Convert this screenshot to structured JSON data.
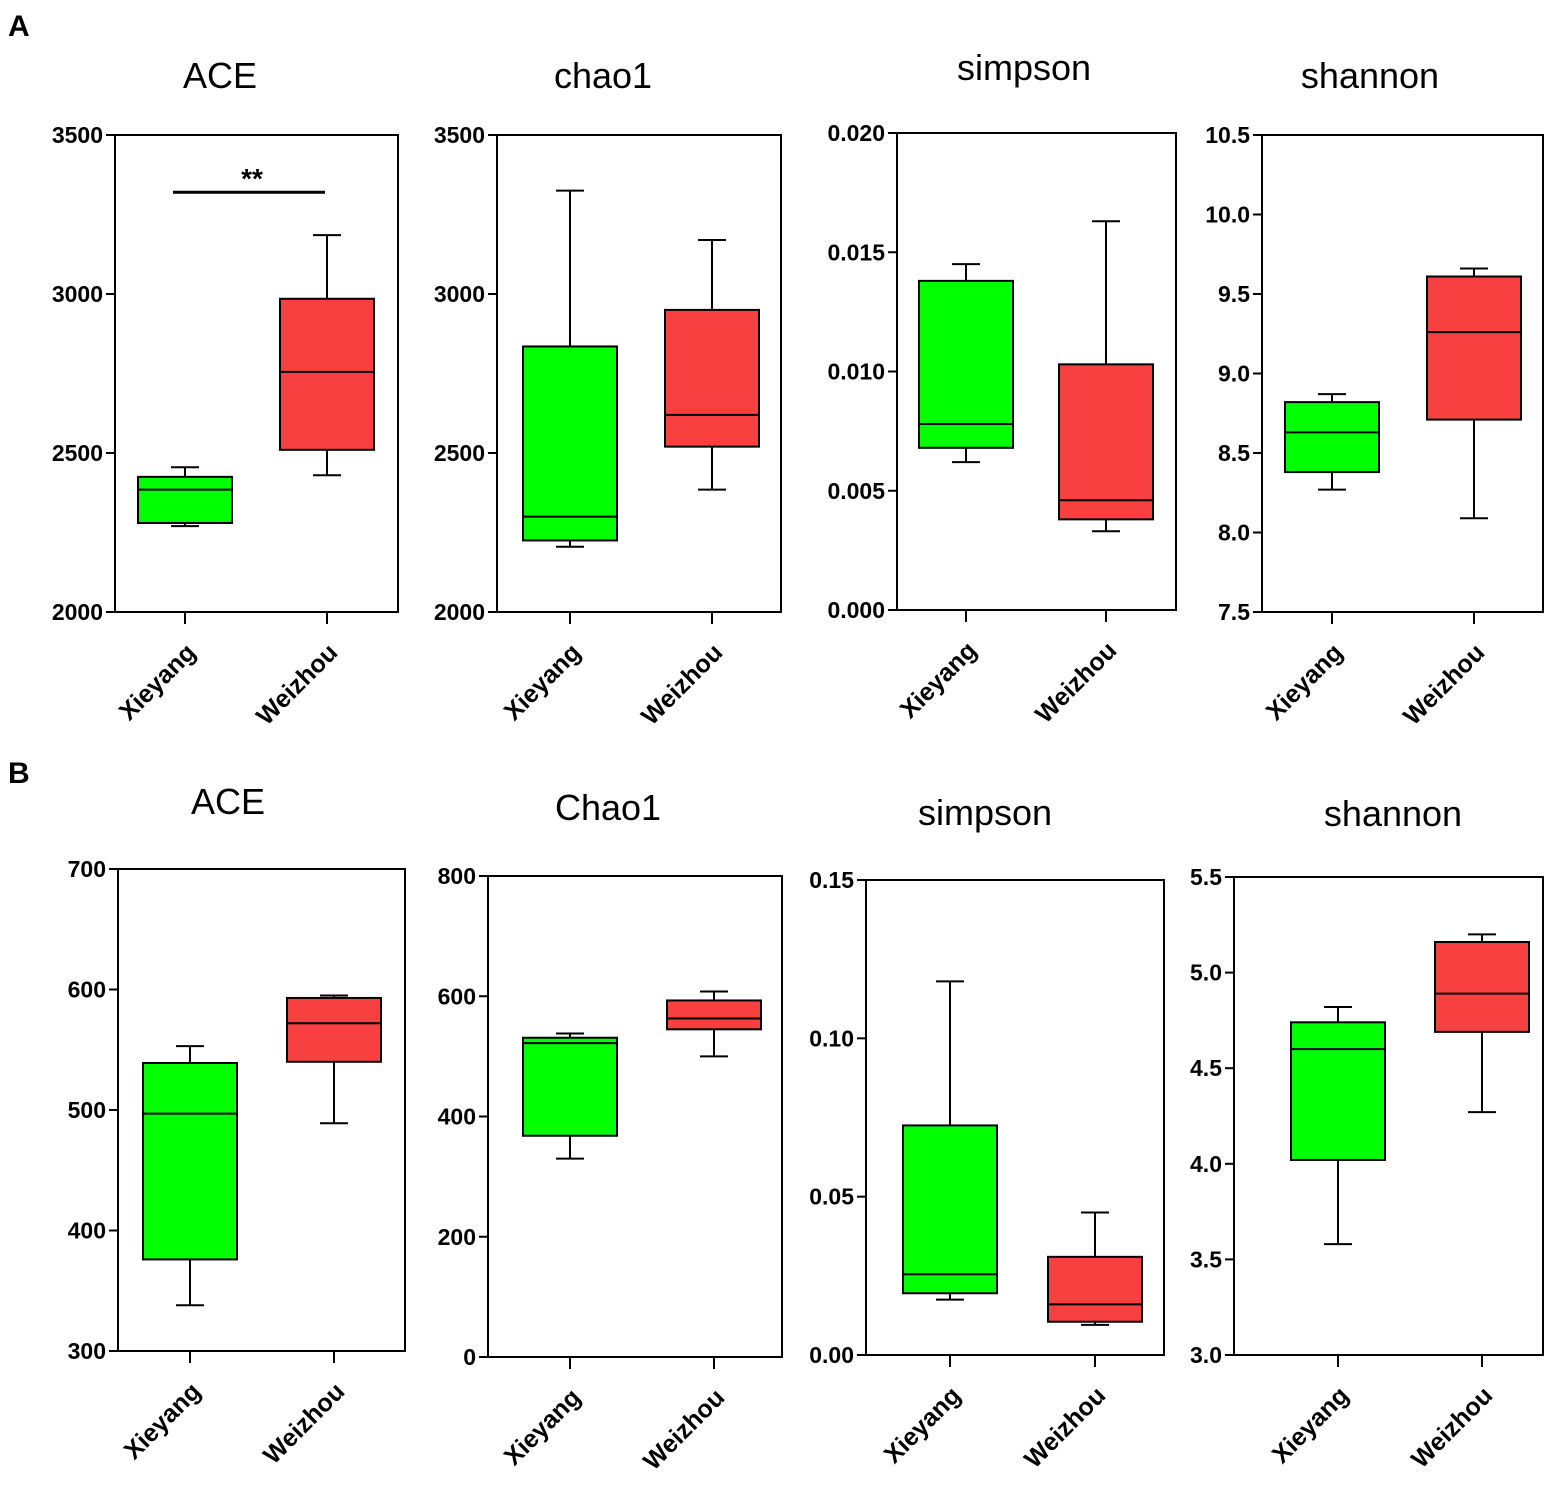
{
  "panels": [
    {
      "label": "A"
    },
    {
      "label": "B"
    }
  ],
  "colors": {
    "Xieyang": "#00ff00",
    "Weizhou": "#f84040",
    "stroke": "#000000"
  },
  "chart_data": [
    {
      "type": "box",
      "panel": "A",
      "title": "ACE",
      "categories": [
        "Xieyang",
        "Weizhou"
      ],
      "ylim": [
        2000,
        3500
      ],
      "yticks": [
        2000,
        2500,
        3000,
        3500
      ],
      "ytick_labels": [
        "2000",
        "2500",
        "3000",
        "3500"
      ],
      "boxes": [
        {
          "group": "Xieyang",
          "min": 2270,
          "q1": 2280,
          "median": 2385,
          "q3": 2425,
          "max": 2455
        },
        {
          "group": "Weizhou",
          "min": 2430,
          "q1": 2510,
          "median": 2755,
          "q3": 2985,
          "max": 3185
        }
      ],
      "significance": {
        "label": "**",
        "value": 3320
      }
    },
    {
      "type": "box",
      "panel": "A",
      "title": "chao1",
      "categories": [
        "Xieyang",
        "Weizhou"
      ],
      "ylim": [
        2000,
        3500
      ],
      "yticks": [
        2000,
        2500,
        3000,
        3500
      ],
      "ytick_labels": [
        "2000",
        "2500",
        "3000",
        "3500"
      ],
      "boxes": [
        {
          "group": "Xieyang",
          "min": 2205,
          "q1": 2225,
          "median": 2300,
          "q3": 2835,
          "max": 3325
        },
        {
          "group": "Weizhou",
          "min": 2385,
          "q1": 2520,
          "median": 2620,
          "q3": 2950,
          "max": 3170
        }
      ]
    },
    {
      "type": "box",
      "panel": "A",
      "title": "simpson",
      "categories": [
        "Xieyang",
        "Weizhou"
      ],
      "ylim": [
        0,
        0.02
      ],
      "yticks": [
        0,
        0.005,
        0.01,
        0.015,
        0.02
      ],
      "ytick_labels": [
        "0.000",
        "0.005",
        "0.010",
        "0.015",
        "0.020"
      ],
      "boxes": [
        {
          "group": "Xieyang",
          "min": 0.0062,
          "q1": 0.0068,
          "median": 0.0078,
          "q3": 0.0138,
          "max": 0.0145
        },
        {
          "group": "Weizhou",
          "min": 0.0033,
          "q1": 0.0038,
          "median": 0.0046,
          "q3": 0.0103,
          "max": 0.0163
        }
      ]
    },
    {
      "type": "box",
      "panel": "A",
      "title": "shannon",
      "categories": [
        "Xieyang",
        "Weizhou"
      ],
      "ylim": [
        7.5,
        10.5
      ],
      "yticks": [
        7.5,
        8.0,
        8.5,
        9.0,
        9.5,
        10.0,
        10.5
      ],
      "ytick_labels": [
        "7.5",
        "8.0",
        "8.5",
        "9.0",
        "9.5",
        "10.0",
        "10.5"
      ],
      "boxes": [
        {
          "group": "Xieyang",
          "min": 8.27,
          "q1": 8.38,
          "median": 8.63,
          "q3": 8.82,
          "max": 8.87
        },
        {
          "group": "Weizhou",
          "min": 8.09,
          "q1": 8.71,
          "median": 9.26,
          "q3": 9.61,
          "max": 9.66
        }
      ]
    },
    {
      "type": "box",
      "panel": "B",
      "title": "ACE",
      "categories": [
        "Xieyang",
        "Weizhou"
      ],
      "ylim": [
        300,
        700
      ],
      "yticks": [
        300,
        400,
        500,
        600,
        700
      ],
      "ytick_labels": [
        "300",
        "400",
        "500",
        "600",
        "700"
      ],
      "boxes": [
        {
          "group": "Xieyang",
          "min": 338,
          "q1": 376,
          "median": 497,
          "q3": 539,
          "max": 553
        },
        {
          "group": "Weizhou",
          "min": 489,
          "q1": 540,
          "median": 572,
          "q3": 593,
          "max": 595
        }
      ]
    },
    {
      "type": "box",
      "panel": "B",
      "title": "Chao1",
      "categories": [
        "Xieyang",
        "Weizhou"
      ],
      "ylim": [
        0,
        800
      ],
      "yticks": [
        0,
        200,
        400,
        600,
        800
      ],
      "ytick_labels": [
        "0",
        "200",
        "400",
        "600",
        "800"
      ],
      "boxes": [
        {
          "group": "Xieyang",
          "min": 330,
          "q1": 368,
          "median": 522,
          "q3": 531,
          "max": 538
        },
        {
          "group": "Weizhou",
          "min": 500,
          "q1": 545,
          "median": 563,
          "q3": 593,
          "max": 608
        }
      ]
    },
    {
      "type": "box",
      "panel": "B",
      "title": "simpson",
      "categories": [
        "Xieyang",
        "Weizhou"
      ],
      "ylim": [
        0,
        0.15
      ],
      "yticks": [
        0,
        0.05,
        0.1,
        0.15
      ],
      "ytick_labels": [
        "0.00",
        "0.05",
        "0.10",
        "0.15"
      ],
      "boxes": [
        {
          "group": "Xieyang",
          "min": 0.0175,
          "q1": 0.0195,
          "median": 0.0255,
          "q3": 0.0725,
          "max": 0.118
        },
        {
          "group": "Weizhou",
          "min": 0.0095,
          "q1": 0.0105,
          "median": 0.016,
          "q3": 0.031,
          "max": 0.045
        }
      ]
    },
    {
      "type": "box",
      "panel": "B",
      "title": "shannon",
      "categories": [
        "Xieyang",
        "Weizhou"
      ],
      "ylim": [
        3.0,
        5.5
      ],
      "yticks": [
        3.0,
        3.5,
        4.0,
        4.5,
        5.0,
        5.5
      ],
      "ytick_labels": [
        "3.0",
        "3.5",
        "4.0",
        "4.5",
        "5.0",
        "5.5"
      ],
      "boxes": [
        {
          "group": "Xieyang",
          "min": 3.58,
          "q1": 4.02,
          "median": 4.6,
          "q3": 4.74,
          "max": 4.82
        },
        {
          "group": "Weizhou",
          "min": 4.27,
          "q1": 4.69,
          "median": 4.89,
          "q3": 5.16,
          "max": 5.2
        }
      ]
    }
  ]
}
